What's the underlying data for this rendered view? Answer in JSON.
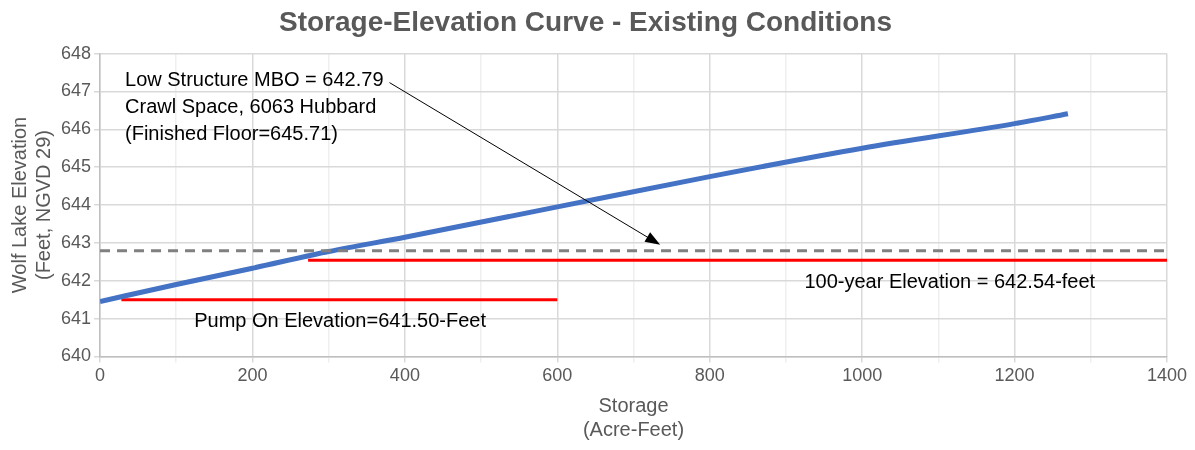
{
  "chart_data": {
    "type": "line",
    "title": "Storage-Elevation Curve - Existing Conditions",
    "xlabel": "Storage\n(Acre-Feet)",
    "ylabel": "Wolf Lake Elevation\n(Feet, NGVD 29)",
    "x": [
      0,
      100,
      200,
      300,
      400,
      600,
      800,
      1000,
      1200,
      1270
    ],
    "series": [
      {
        "color": "#4472c4",
        "values": [
          641.45,
          641.9,
          642.33,
          642.77,
          643.15,
          643.95,
          644.75,
          645.5,
          646.15,
          646.41
        ]
      },
      {
        "color": "#ff0000",
        "x": [
          28,
          600
        ],
        "values": [
          641.5,
          641.5
        ]
      },
      {
        "color": "#ff0000",
        "x": [
          273,
          1400
        ],
        "values": [
          642.54,
          642.54
        ]
      }
    ],
    "xlim": [
      0,
      1400
    ],
    "xticks": [
      0,
      {
        "value": 100,
        "label": null
      },
      200,
      {
        "value": 300,
        "label": null
      },
      400,
      {
        "value": 500,
        "label": null
      },
      600,
      {
        "value": 700,
        "label": null
      },
      800,
      {
        "value": 900,
        "label": null
      },
      1000,
      {
        "value": 1100,
        "label": null
      },
      1200,
      {
        "value": 1300,
        "label": null
      },
      1400
    ],
    "ylim": [
      640,
      648
    ],
    "yticks": [
      640,
      641,
      642,
      643,
      644,
      645,
      646,
      647,
      648
    ],
    "grid": true,
    "marker": "none",
    "line_style": "solid",
    "legend": false,
    "ref_lines": [
      {
        "axis": "y",
        "value": 642.79,
        "color": "#808080",
        "line_style": "dashed"
      }
    ],
    "annotations": [
      "Low Structure MBO = 642.79\nCrawl Space, 6063 Hubbard\n(Finished Floor=645.71)",
      {
        "text": "Pump On Elevation=641.50-Feet",
        "x": 315,
        "y": 641.5
      },
      {
        "text": "100-year Elevation = 642.54-feet",
        "x": 1115,
        "y": 642.54
      }
    ]
  }
}
